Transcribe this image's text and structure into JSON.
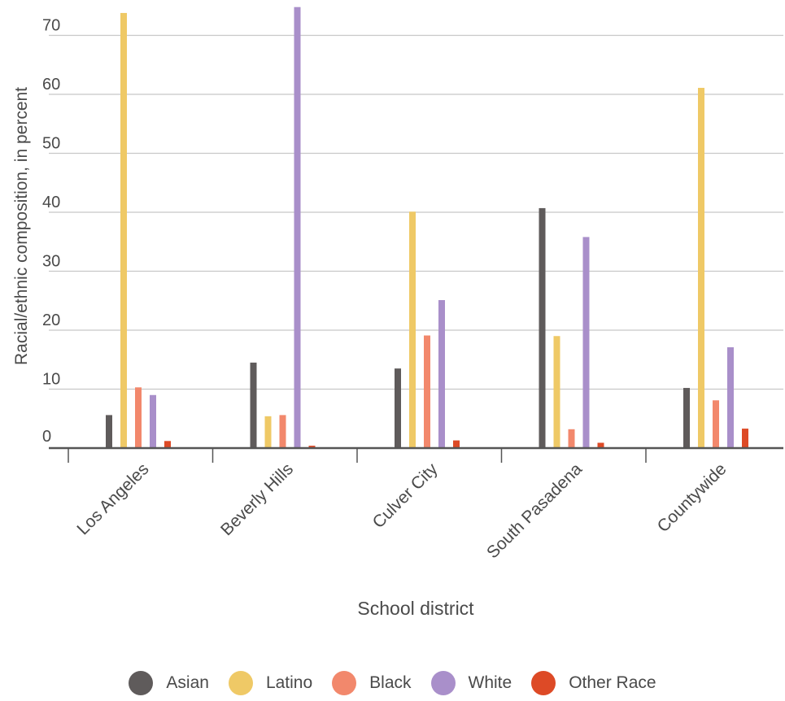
{
  "chart_data": {
    "type": "bar",
    "title": "",
    "xlabel": "School district",
    "ylabel": "Racial/ethnic composition, in percent",
    "ylim": [
      0,
      75
    ],
    "yticks": [
      0,
      10,
      20,
      30,
      40,
      50,
      60,
      70
    ],
    "grid": true,
    "legend_position": "bottom",
    "categories": [
      "Los Angeles",
      "Beverly Hills",
      "Culver City",
      "South Pasadena",
      "Countywide"
    ],
    "series": [
      {
        "name": "Asian",
        "color": "#5f5b5b",
        "values": [
          5.6,
          14.5,
          13.5,
          40.7,
          10.2
        ]
      },
      {
        "name": "Latino",
        "color": "#efc966",
        "values": [
          73.8,
          5.4,
          40.1,
          19.0,
          61.1
        ]
      },
      {
        "name": "Black",
        "color": "#f2886c",
        "values": [
          10.3,
          5.6,
          19.1,
          3.2,
          8.1
        ]
      },
      {
        "name": "White",
        "color": "#a98fca",
        "values": [
          9.0,
          74.8,
          25.1,
          35.8,
          17.1
        ]
      },
      {
        "name": "Other Race",
        "color": "#dd4a26",
        "values": [
          1.2,
          0.4,
          1.3,
          0.9,
          3.3
        ]
      }
    ]
  }
}
